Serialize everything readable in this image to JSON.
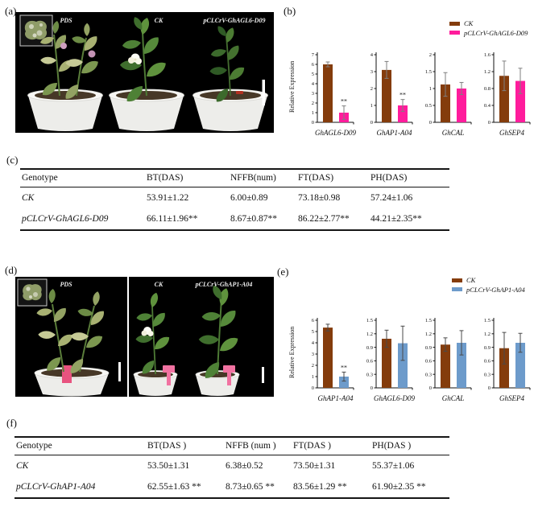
{
  "figure": {
    "panels": {
      "a": {
        "label": "(a)",
        "photo_labels": [
          "PDS",
          "CK",
          "pCLCrV-GhAGL6-D09"
        ]
      },
      "b": {
        "label": "(b)"
      },
      "c": {
        "label": "(c)"
      },
      "d": {
        "label": "(d)",
        "photo_labels": [
          "PDS",
          "CK",
          "pCLCrV-GhAP1-A04"
        ]
      },
      "e": {
        "label": "(e)"
      },
      "f": {
        "label": "(f)"
      }
    }
  },
  "chart_data": [
    {
      "panel": "b",
      "type": "bar",
      "ylabel": "Relative Expression",
      "legend": [
        "CK",
        "pCLCrV-GhAGL6-D09"
      ],
      "colors": [
        "#843C0C",
        "#FF1C9C"
      ],
      "error_color": "#7f7f7f",
      "legend_position": "top-right",
      "charts": [
        {
          "gene": "GhAGL6-D09",
          "ylim": [
            0,
            7
          ],
          "ystep": 1,
          "values": [
            6.0,
            1.0
          ],
          "errors": [
            0.25,
            0.7
          ],
          "sig": [
            "",
            "**"
          ]
        },
        {
          "gene": "GhAP1-A04",
          "ylim": [
            0,
            4
          ],
          "ystep": 1,
          "values": [
            3.1,
            1.0
          ],
          "errors": [
            0.5,
            0.35
          ],
          "sig": [
            "",
            "**"
          ]
        },
        {
          "gene": "GhCAL",
          "ylim": [
            0,
            2
          ],
          "ystep": 0.5,
          "values": [
            1.12,
            1.0
          ],
          "errors": [
            0.35,
            0.18
          ],
          "sig": [
            "",
            ""
          ]
        },
        {
          "gene": "GhSEP4",
          "ylim": [
            0,
            1.6
          ],
          "ystep": 0.4,
          "values": [
            1.1,
            0.98
          ],
          "errors": [
            0.35,
            0.3
          ],
          "sig": [
            "",
            ""
          ]
        }
      ]
    },
    {
      "panel": "e",
      "type": "bar",
      "ylabel": "Relative Expression",
      "legend": [
        "CK",
        "pCLCrV-GhAP1-A04"
      ],
      "colors": [
        "#843C0C",
        "#6D9BCB"
      ],
      "error_color": "#4a4a4a",
      "legend_position": "top-right",
      "charts": [
        {
          "gene": "GhAP1-A04",
          "ylim": [
            0,
            6
          ],
          "ystep": 1,
          "values": [
            5.35,
            1.0
          ],
          "errors": [
            0.3,
            0.4
          ],
          "sig": [
            "",
            "**"
          ]
        },
        {
          "gene": "GhAGL6-D09",
          "ylim": [
            0,
            1.5
          ],
          "ystep": 0.3,
          "values": [
            1.09,
            0.99
          ],
          "errors": [
            0.19,
            0.38
          ],
          "sig": [
            "",
            ""
          ]
        },
        {
          "gene": "GhCAL",
          "ylim": [
            0,
            1.5
          ],
          "ystep": 0.3,
          "values": [
            0.96,
            1.0
          ],
          "errors": [
            0.15,
            0.27
          ],
          "sig": [
            "",
            ""
          ]
        },
        {
          "gene": "GhSEP4",
          "ylim": [
            0,
            1.5
          ],
          "ystep": 0.3,
          "values": [
            0.88,
            1.0
          ],
          "errors": [
            0.35,
            0.21
          ],
          "sig": [
            "",
            ""
          ]
        }
      ]
    }
  ],
  "tables": {
    "c": {
      "headers": [
        "Genotype",
        "BT(DAS)",
        "NFFB(num)",
        "FT(DAS)",
        "PH(DAS)"
      ],
      "rows": [
        [
          "CK",
          "53.91±1.22",
          "6.00±0.89",
          "73.18±0.98",
          "57.24±1.06"
        ],
        [
          "pCLCrV-GhAGL6-D09",
          "66.11±1.96**",
          "8.67±0.87**",
          "86.22±2.77**",
          "44.21±2.35**"
        ]
      ]
    },
    "f": {
      "headers": [
        "Genotype",
        "BT(DAS )",
        "NFFB (num )",
        "FT(DAS )",
        "PH(DAS )"
      ],
      "rows": [
        [
          "CK",
          "53.50±1.31",
          "6.38±0.52",
          "73.50±1.31",
          "55.37±1.06"
        ],
        [
          "pCLCrV-GhAP1-A04",
          "62.55±1.63 **",
          "8.73±0.65 **",
          "83.56±1.29 **",
          "61.90±2.35 **"
        ]
      ]
    }
  }
}
